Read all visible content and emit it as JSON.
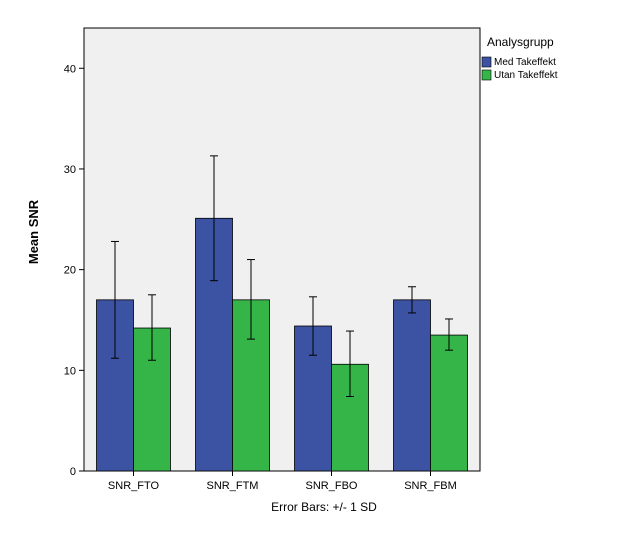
{
  "chart_data": {
    "type": "bar",
    "categories": [
      "SNR_FTO",
      "SNR_FTM",
      "SNR_FBO",
      "SNR_FBM"
    ],
    "series": [
      {
        "name": "Med Takeffekt",
        "color": "#3c53a4",
        "values": [
          17.0,
          25.1,
          14.4,
          17.0
        ],
        "error_low": [
          11.2,
          18.9,
          11.5,
          15.7
        ],
        "error_high": [
          22.8,
          31.3,
          17.3,
          18.3
        ]
      },
      {
        "name": "Utan Takeffekt",
        "color": "#35b548",
        "values": [
          14.2,
          17.0,
          10.6,
          13.5
        ],
        "error_low": [
          11.0,
          13.1,
          7.4,
          12.0
        ],
        "error_high": [
          17.5,
          21.0,
          13.9,
          15.1
        ]
      }
    ],
    "ylabel": "Mean SNR",
    "xlabel": "",
    "ylim": [
      0,
      44
    ],
    "yticks": [
      0,
      10,
      20,
      30,
      40
    ],
    "grid": false,
    "plot_background": "#f0f0f0",
    "legend": {
      "title": "Analysgrupp",
      "placement": "top-right outside"
    },
    "footnote": "Error Bars: +/- 1 SD"
  }
}
